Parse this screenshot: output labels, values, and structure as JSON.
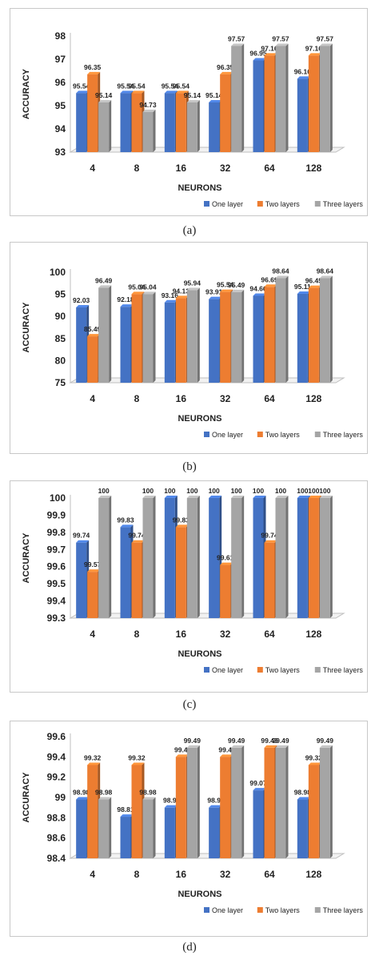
{
  "chart_data": [
    {
      "panel_label": "(a)",
      "type": "bar",
      "xlabel": "NEURONS",
      "ylabel": "ACCURACY",
      "categories": [
        "4",
        "8",
        "16",
        "32",
        "64",
        "128"
      ],
      "ylim": [
        93,
        98
      ],
      "yticks": [
        "93",
        "94",
        "95",
        "96",
        "97",
        "98"
      ],
      "series": [
        {
          "name": "One layer",
          "color": "#4472C4",
          "values": [
            95.54,
            95.54,
            95.54,
            95.14,
            96.95,
            96.16
          ],
          "labels": [
            "95.54",
            "95.54",
            "95.54",
            "95.14",
            "96.95",
            "96.16"
          ]
        },
        {
          "name": "Two layers",
          "color": "#ED7D31",
          "values": [
            96.35,
            95.54,
            95.54,
            96.35,
            97.16,
            97.16
          ],
          "labels": [
            "96.35",
            "95.54",
            "95.54",
            "96.35",
            "97.16",
            "97.16"
          ]
        },
        {
          "name": "Three layers",
          "color": "#A5A5A5",
          "values": [
            95.14,
            94.73,
            95.14,
            97.57,
            97.57,
            97.57
          ],
          "labels": [
            "95.14",
            "94.73",
            "95.14",
            "97.57",
            "97.57",
            "97.57"
          ]
        }
      ],
      "legend": "bottom-right"
    },
    {
      "panel_label": "(b)",
      "type": "bar",
      "xlabel": "NEURONS",
      "ylabel": "ACCURACY",
      "categories": [
        "4",
        "8",
        "16",
        "32",
        "64",
        "128"
      ],
      "ylim": [
        75,
        100
      ],
      "yticks": [
        "75",
        "80",
        "85",
        "90",
        "95",
        "100"
      ],
      "series": [
        {
          "name": "One layer",
          "color": "#4472C4",
          "values": [
            92.03,
            92.18,
            93.16,
            93.91,
            94.66,
            95.11
          ],
          "labels": [
            "92.03",
            "92.18",
            "93.16",
            "93.91",
            "94.66",
            "95.11"
          ]
        },
        {
          "name": "Two layers",
          "color": "#ED7D31",
          "values": [
            85.49,
            95.04,
            94.13,
            95.54,
            96.69,
            96.45
          ],
          "labels": [
            "85.49",
            "95.04",
            "94.13",
            "95.54",
            "96.69",
            "96.45"
          ]
        },
        {
          "name": "Three layers",
          "color": "#A5A5A5",
          "values": [
            96.49,
            95.04,
            95.94,
            95.49,
            98.64,
            98.64
          ],
          "labels": [
            "96.49",
            "95.04",
            "95.94",
            "95.49",
            "98.64",
            "98.64"
          ]
        }
      ],
      "legend": "bottom-right"
    },
    {
      "panel_label": "(c)",
      "type": "bar",
      "xlabel": "NEURONS",
      "ylabel": "ACCURACY",
      "categories": [
        "4",
        "8",
        "16",
        "32",
        "64",
        "128"
      ],
      "ylim": [
        99.3,
        100
      ],
      "yticks": [
        "99.3",
        "99.4",
        "99.5",
        "99.6",
        "99.7",
        "99.8",
        "99.9",
        "100"
      ],
      "series": [
        {
          "name": "One layer",
          "color": "#4472C4",
          "values": [
            99.74,
            99.83,
            100,
            100,
            100,
            100
          ],
          "labels": [
            "99.74",
            "99.83",
            "100",
            "100",
            "100",
            "100"
          ]
        },
        {
          "name": "Two layers",
          "color": "#ED7D31",
          "values": [
            99.57,
            99.74,
            99.83,
            99.61,
            99.74,
            100
          ],
          "labels": [
            "99.57",
            "99.74",
            "99.83",
            "99.61",
            "99.74",
            "100"
          ]
        },
        {
          "name": "Three layers",
          "color": "#A5A5A5",
          "values": [
            100,
            100,
            100,
            100,
            100,
            100
          ],
          "labels": [
            "100",
            "100",
            "100",
            "100",
            "100",
            "100"
          ]
        }
      ],
      "legend": "bottom-right"
    },
    {
      "panel_label": "(d)",
      "type": "bar",
      "xlabel": "NEURONS",
      "ylabel": "ACCURACY",
      "categories": [
        "4",
        "8",
        "16",
        "32",
        "64",
        "128"
      ],
      "ylim": [
        98.4,
        99.6
      ],
      "yticks": [
        "98.4",
        "98.6",
        "98.8",
        "99",
        "99.2",
        "99.4",
        "99.6"
      ],
      "series": [
        {
          "name": "One layer",
          "color": "#4472C4",
          "values": [
            98.98,
            98.81,
            98.9,
            98.9,
            99.07,
            98.98
          ],
          "labels": [
            "98.98",
            "98.81",
            "98.9",
            "98.9",
            "99.07",
            "98.98"
          ]
        },
        {
          "name": "Two layers",
          "color": "#ED7D31",
          "values": [
            99.32,
            99.32,
            99.4,
            99.4,
            99.49,
            99.32
          ],
          "labels": [
            "99.32",
            "99.32",
            "99.4",
            "99.4",
            "99.49",
            "99.32"
          ]
        },
        {
          "name": "Three layers",
          "color": "#A5A5A5",
          "values": [
            98.98,
            98.98,
            99.49,
            99.49,
            99.49,
            99.49
          ],
          "labels": [
            "98.98",
            "98.98",
            "99.49",
            "99.49",
            "99.49",
            "99.49"
          ]
        }
      ],
      "legend": "bottom-right"
    }
  ]
}
